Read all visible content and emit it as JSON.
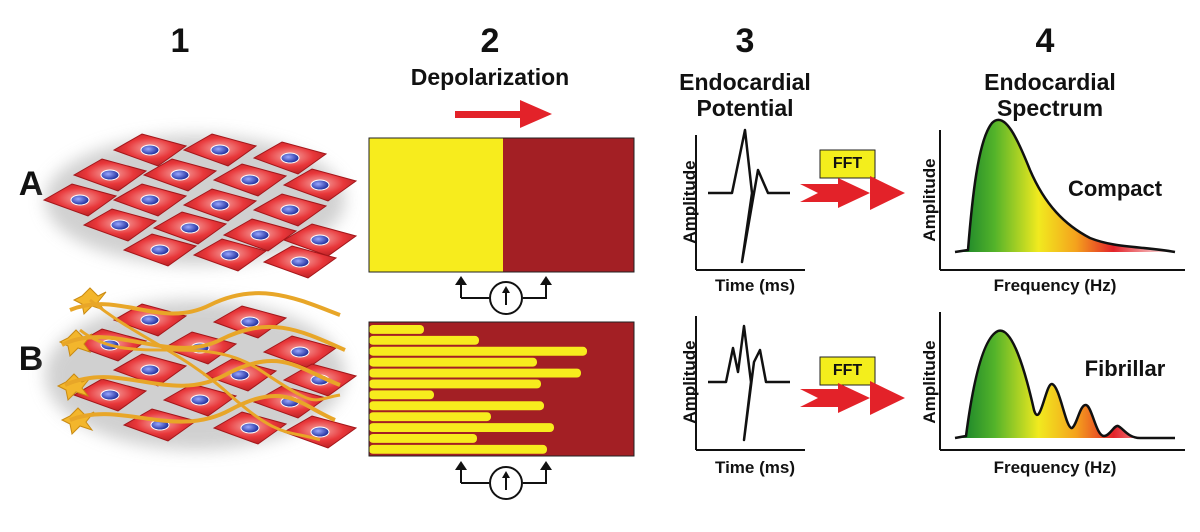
{
  "columns": [
    {
      "number": "1"
    },
    {
      "number": "2",
      "heading": "Depolarization"
    },
    {
      "number": "3",
      "heading_line1": "Endocardial",
      "heading_line2": "Potential"
    },
    {
      "number": "4",
      "heading_line1": "Endocardial",
      "heading_line2": "Spectrum"
    }
  ],
  "rows": [
    {
      "label": "A",
      "spectrum_label": "Compact"
    },
    {
      "label": "B",
      "spectrum_label": "Fibrillar"
    }
  ],
  "axes": {
    "amplitude": "Amplitude",
    "time": "Time (ms)",
    "frequency": "Frequency (Hz)"
  },
  "fft_label": "FFT",
  "colors": {
    "cell_red": "#e8373a",
    "depolarized": "#a31f24",
    "resting": "#f7ec1d",
    "arrow_red": "#e32229",
    "fft_box": "#f3ee1c",
    "fiber": "#e8a628"
  }
}
